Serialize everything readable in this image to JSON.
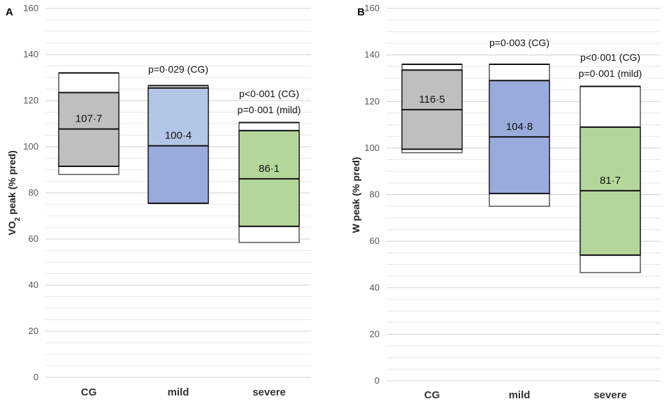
{
  "chart_data": [
    {
      "type": "box",
      "panel_label": "A",
      "ylabel_main": "VO",
      "ylabel_sub": "2",
      "ylabel_rest": " peak (% pred)",
      "ylim": [
        0,
        160
      ],
      "yticks": [
        "0",
        "20",
        "40",
        "60",
        "80",
        "100",
        "120",
        "140",
        "160"
      ],
      "categories": [
        "CG",
        "mild",
        "severe"
      ],
      "colors": [
        "#bfbfbf",
        "#9aabdb",
        "#b5d69a"
      ],
      "upper_colors": [
        "#bfbfbf",
        "#b4c6e7",
        "#b5d69a"
      ],
      "boxes": [
        {
          "min": 88,
          "q1": 91.5,
          "median": 107.7,
          "q3": 123.5,
          "max": 132,
          "label": "107·7"
        },
        {
          "min": 75.5,
          "q1": 75.5,
          "median": 100.4,
          "q3": 125.5,
          "max": 126.5,
          "label": "100·4"
        },
        {
          "min": 58.5,
          "q1": 65.5,
          "median": 86.1,
          "q3": 107,
          "max": 110.5,
          "label": "86·1"
        }
      ],
      "annotations": [
        {
          "category": "mild",
          "lines": [
            "p=0·029 (CG)"
          ]
        },
        {
          "category": "severe",
          "lines": [
            "p<0·001 (CG)",
            "p=0·001 (mild)"
          ]
        }
      ]
    },
    {
      "type": "box",
      "panel_label": "B",
      "ylabel_main": "W peak (% pred)",
      "ylim": [
        0,
        160
      ],
      "yticks": [
        "0",
        "20",
        "40",
        "60",
        "80",
        "100",
        "120",
        "140",
        "160"
      ],
      "categories": [
        "CG",
        "mild",
        "severe"
      ],
      "colors": [
        "#bfbfbf",
        "#9aabdb",
        "#b5d69a"
      ],
      "upper_colors": [
        "#bfbfbf",
        "#9aabdb",
        "#b5d69a"
      ],
      "boxes": [
        {
          "min": 98,
          "q1": 99.5,
          "median": 116.5,
          "q3": 133.5,
          "max": 136,
          "label": "116·5"
        },
        {
          "min": 75,
          "q1": 80.5,
          "median": 104.8,
          "q3": 129,
          "max": 136,
          "label": "104·8"
        },
        {
          "min": 46.5,
          "q1": 54,
          "median": 81.7,
          "q3": 109,
          "max": 126.5,
          "label": "81·7"
        }
      ],
      "annotations": [
        {
          "category": "mild",
          "lines": [
            "p=0·003 (CG)"
          ]
        },
        {
          "category": "severe",
          "lines": [
            "p<0·001 (CG)",
            "p=0·001 (mild)"
          ]
        }
      ]
    }
  ]
}
